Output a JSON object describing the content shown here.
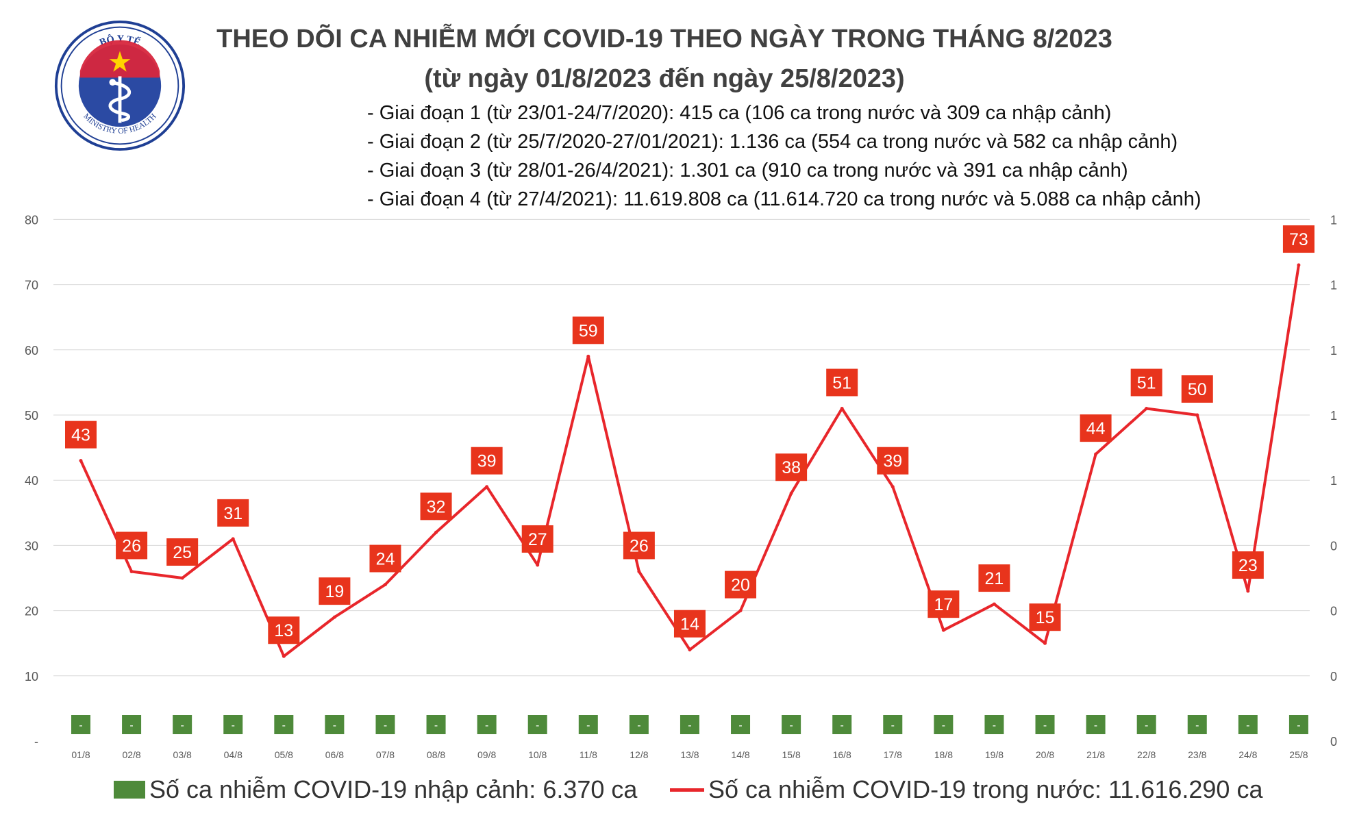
{
  "logo": {
    "top_text": "BỘ Y TẾ",
    "bottom_text": "MINISTRY OF HEALTH",
    "colors": {
      "ring": "#1f3f94",
      "inner": "#2b4aa3",
      "band": "#d7263d",
      "star": "#ffd400",
      "line": "#ffffff"
    }
  },
  "header": {
    "title_line1": "THEO DÕI CA NHIỄM MỚI COVID-19 THEO NGÀY TRONG THÁNG 8/2023",
    "title_line2": "(từ ngày 01/8/2023 đến ngày 25/8/2023)"
  },
  "phases": [
    "- Giai đoạn 1 (từ 23/01-24/7/2020): 415 ca (106 ca trong nước và 309 ca nhập cảnh)",
    "- Giai đoạn 2 (từ 25/7/2020-27/01/2021): 1.136 ca (554 ca trong nước và 582 ca nhập cảnh)",
    "- Giai đoạn 3 (từ 28/01-26/4/2021): 1.301 ca (910 ca trong nước và 391 ca nhập cảnh)",
    "- Giai đoạn 4 (từ 27/4/2021): 11.619.808 ca (11.614.720 ca trong nước và 5.088 ca nhập cảnh)"
  ],
  "chart_data": {
    "type": "line",
    "categories": [
      "01/8",
      "02/8",
      "03/8",
      "04/8",
      "05/8",
      "06/8",
      "07/8",
      "08/8",
      "09/8",
      "10/8",
      "11/8",
      "12/8",
      "13/8",
      "14/8",
      "15/8",
      "16/8",
      "17/8",
      "18/8",
      "19/8",
      "20/8",
      "21/8",
      "22/8",
      "23/8",
      "24/8",
      "25/8"
    ],
    "series": [
      {
        "name": "Số ca nhiễm COVID-19 trong nước: 11.616.290 ca",
        "color": "#e8262b",
        "values": [
          43,
          26,
          25,
          31,
          13,
          19,
          24,
          32,
          39,
          27,
          59,
          26,
          14,
          20,
          38,
          51,
          39,
          17,
          21,
          15,
          44,
          51,
          50,
          23,
          73
        ]
      },
      {
        "name": "Số ca nhiễm COVID-19 nhập cảnh: 6.370 ca",
        "color": "#4e8a3a",
        "labels": [
          "-",
          "-",
          "-",
          "-",
          "-",
          "-",
          "-",
          "-",
          "-",
          "-",
          "-",
          "-",
          "-",
          "-",
          "-",
          "-",
          "-",
          "-",
          "-",
          "-",
          "-",
          "-",
          "-",
          "-",
          "-"
        ]
      }
    ],
    "ylim": [
      0,
      80
    ],
    "left_ticks": [
      "-",
      "10",
      "20",
      "30",
      "40",
      "50",
      "60",
      "70",
      "80"
    ],
    "right_ticks": [
      "0",
      "0",
      "0",
      "0",
      "1",
      "1",
      "1",
      "1",
      "1"
    ],
    "grid": true,
    "legend_position": "bottom",
    "label_box_color": "#e8341c"
  }
}
